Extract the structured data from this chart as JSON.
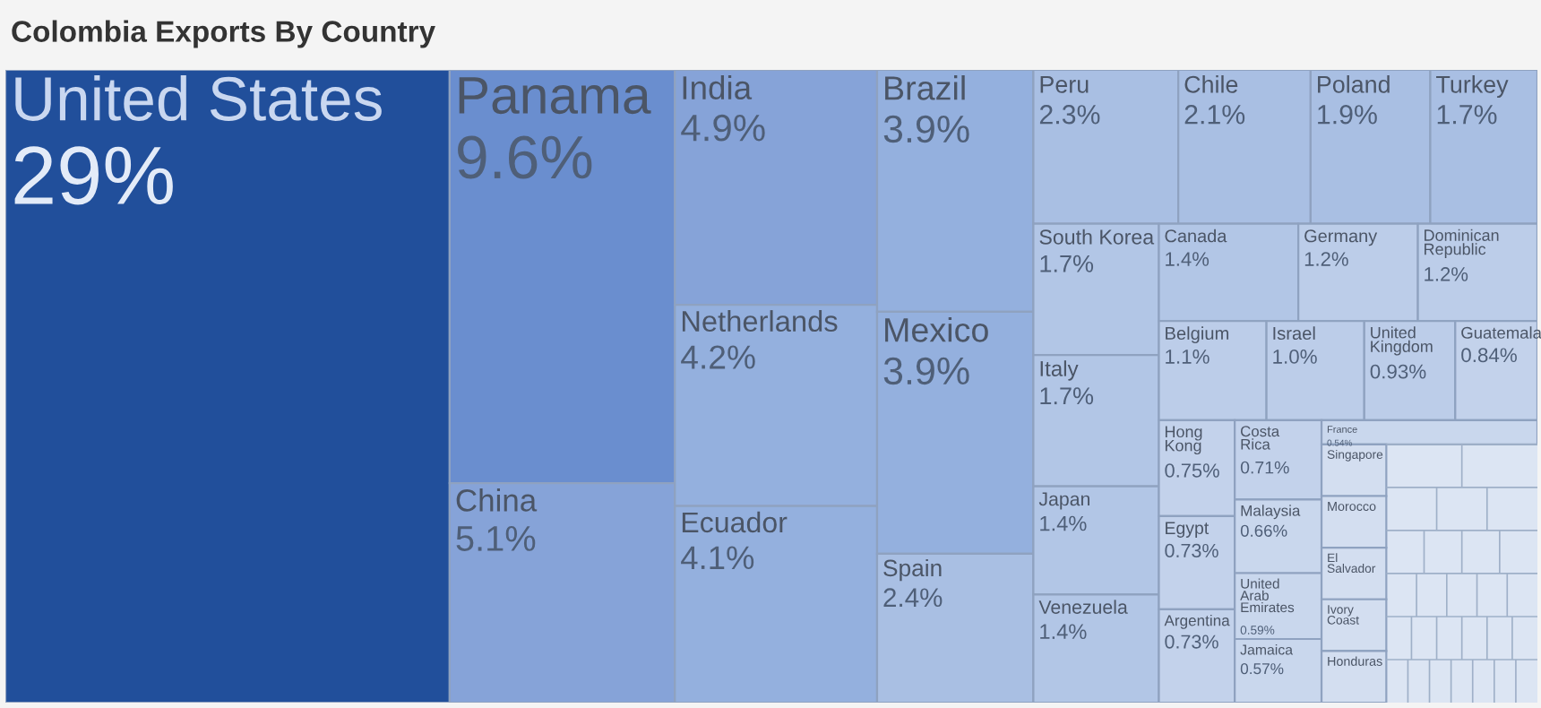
{
  "chart_data": {
    "type": "other",
    "title": "Colombia Exports By Country",
    "categories": [
      "United States",
      "Panama",
      "China",
      "India",
      "Netherlands",
      "Ecuador",
      "Brazil",
      "Mexico",
      "Spain",
      "Peru",
      "Chile",
      "Poland",
      "Turkey",
      "South Korea",
      "Italy",
      "Japan",
      "Venezuela",
      "Canada",
      "Germany",
      "Dominican Republic",
      "Belgium",
      "Israel",
      "United Kingdom",
      "Guatemala",
      "Hong Kong",
      "Egypt",
      "Argentina",
      "Costa Rica",
      "Malaysia",
      "United Arab Emirates",
      "Jamaica",
      "France",
      "Singapore",
      "Morocco",
      "El Salvador",
      "Ivory Coast",
      "Honduras"
    ],
    "values": [
      29,
      9.6,
      5.1,
      4.9,
      4.2,
      4.1,
      3.9,
      3.9,
      2.4,
      2.3,
      2.1,
      1.9,
      1.7,
      1.7,
      1.7,
      1.4,
      1.4,
      1.4,
      1.2,
      1.2,
      1.1,
      1.0,
      0.93,
      0.84,
      0.75,
      0.73,
      0.73,
      0.71,
      0.66,
      0.59,
      0.57,
      0.54,
      null,
      null,
      null,
      null,
      null
    ],
    "value_labels": [
      "29%",
      "9.6%",
      "5.1%",
      "4.9%",
      "4.2%",
      "4.1%",
      "3.9%",
      "3.9%",
      "2.4%",
      "2.3%",
      "2.1%",
      "1.9%",
      "1.7%",
      "1.7%",
      "1.7%",
      "1.4%",
      "1.4%",
      "1.4%",
      "1.2%",
      "1.2%",
      "1.1%",
      "1.0%",
      "0.93%",
      "0.84%",
      "0.75%",
      "0.73%",
      "0.73%",
      "0.71%",
      "0.66%",
      "0.59%",
      "0.57%",
      "0.54%",
      null,
      null,
      null,
      null,
      null
    ],
    "colors": [
      "#214f9b",
      "#6a8ecf",
      "#86a3d8",
      "#86a3d8",
      "#94b0de",
      "#94b0de",
      "#94b0de",
      "#94b0de",
      "#a9bfe3",
      "#a9bfe3",
      "#a9bfe3",
      "#a9bfe3",
      "#a9bfe3",
      "#b2c6e6",
      "#b2c6e6",
      "#b2c6e6",
      "#b2c6e6",
      "#b2c6e6",
      "#bccde9",
      "#bccde9",
      "#bccde9",
      "#bccde9",
      "#bccde9",
      "#c3d2eb",
      "#c3d2eb",
      "#c3d2eb",
      "#c3d2eb",
      "#c3d2eb",
      "#c9d7ed",
      "#c9d7ed",
      "#c9d7ed",
      "#c9d7ed",
      "#d3def0",
      "#d3def0",
      "#d3def0",
      "#d3def0",
      "#d3def0"
    ]
  }
}
